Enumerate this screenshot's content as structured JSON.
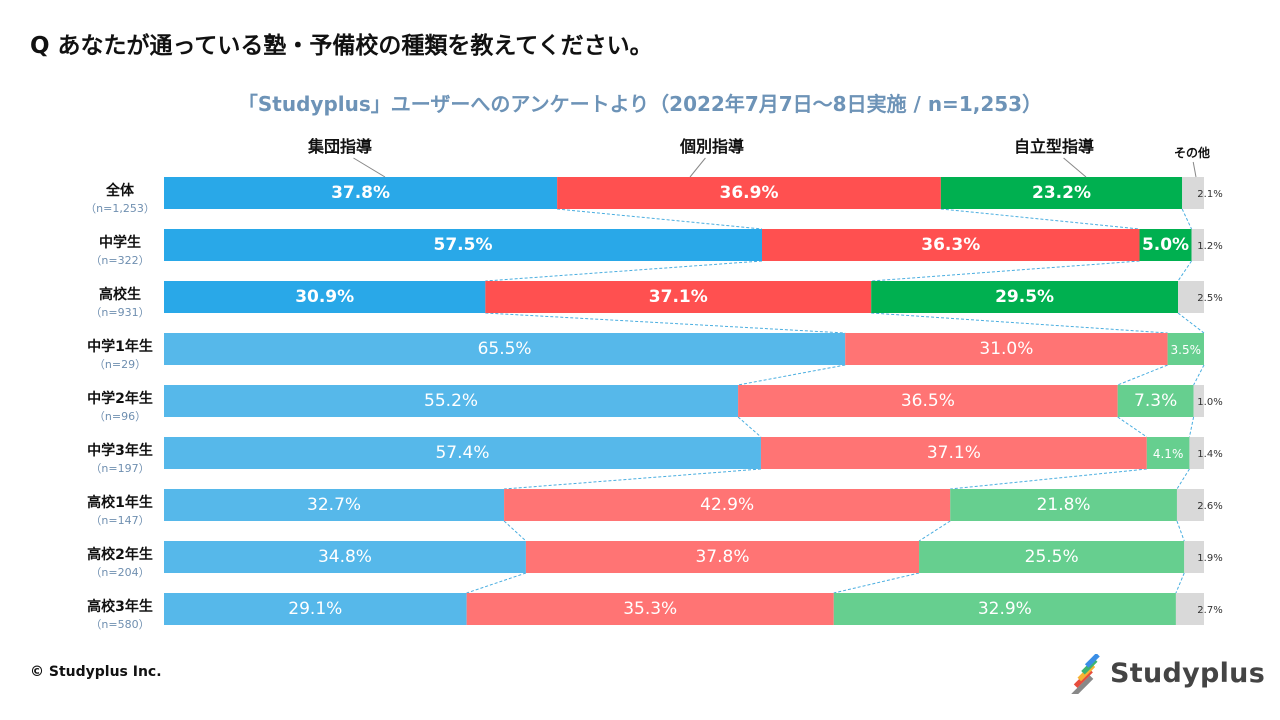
{
  "question": "Q あなたが通っている塾・予備校の種類を教えてください。",
  "subtitle": "「Studyplus」ユーザーへのアンケートより（2022年7月7日〜8日実施 / n=1,253）",
  "copyright": "© Studyplus Inc.",
  "logo_text": "Studyplus",
  "colors": {
    "dark": [
      "#29a8e8",
      "#ff5050",
      "#00b050",
      "#d9d9d9"
    ],
    "light": [
      "#56b8ea",
      "#ff7474",
      "#66cf8f",
      "#d9d9d9"
    ],
    "connector": "#4aaee0"
  },
  "chart_data": {
    "type": "bar",
    "orientation": "horizontal-stacked-100",
    "title": "「Studyplus」ユーザーへのアンケートより（2022年7月7日〜8日実施 / n=1,253）",
    "series_names": [
      "集団指導",
      "個別指導",
      "自立型指導",
      "その他"
    ],
    "rows": [
      {
        "label": "全体",
        "n": "（n=1,253）",
        "values": [
          37.8,
          36.9,
          23.2,
          2.1
        ],
        "texts": [
          "37.8%",
          "36.9%",
          "23.2%",
          "2.1%"
        ],
        "style": "dark"
      },
      {
        "label": "中学生",
        "n": "（n=322）",
        "values": [
          57.5,
          36.3,
          5.0,
          1.2
        ],
        "texts": [
          "57.5%",
          "36.3%",
          "5.0%",
          "1.2%"
        ],
        "style": "dark"
      },
      {
        "label": "高校生",
        "n": "（n=931）",
        "values": [
          30.9,
          37.1,
          29.5,
          2.5
        ],
        "texts": [
          "30.9%",
          "37.1%",
          "29.5%",
          "2.5%"
        ],
        "style": "dark"
      },
      {
        "label": "中学1年生",
        "n": "（n=29）",
        "values": [
          65.5,
          31.0,
          3.5,
          0
        ],
        "texts": [
          "65.5%",
          "31.0%",
          "3.5%",
          ""
        ],
        "style": "light"
      },
      {
        "label": "中学2年生",
        "n": "（n=96）",
        "values": [
          55.2,
          36.5,
          7.3,
          1.0
        ],
        "texts": [
          "55.2%",
          "36.5%",
          "7.3%",
          "1.0%"
        ],
        "style": "light"
      },
      {
        "label": "中学3年生",
        "n": "（n=197）",
        "values": [
          57.4,
          37.1,
          4.1,
          1.4
        ],
        "texts": [
          "57.4%",
          "37.1%",
          "4.1%",
          "1.4%"
        ],
        "style": "light"
      },
      {
        "label": "高校1年生",
        "n": "（n=147）",
        "values": [
          32.7,
          42.9,
          21.8,
          2.6
        ],
        "texts": [
          "32.7%",
          "42.9%",
          "21.8%",
          "2.6%"
        ],
        "style": "light"
      },
      {
        "label": "高校2年生",
        "n": "（n=204）",
        "values": [
          34.8,
          37.8,
          25.5,
          1.9
        ],
        "texts": [
          "34.8%",
          "37.8%",
          "25.5%",
          "1.9%"
        ],
        "style": "light"
      },
      {
        "label": "高校3年生",
        "n": "（n=580）",
        "values": [
          29.1,
          35.3,
          32.9,
          2.7
        ],
        "texts": [
          "29.1%",
          "35.3%",
          "32.9%",
          "2.7%"
        ],
        "style": "light"
      }
    ],
    "xlim": [
      0,
      100
    ]
  }
}
